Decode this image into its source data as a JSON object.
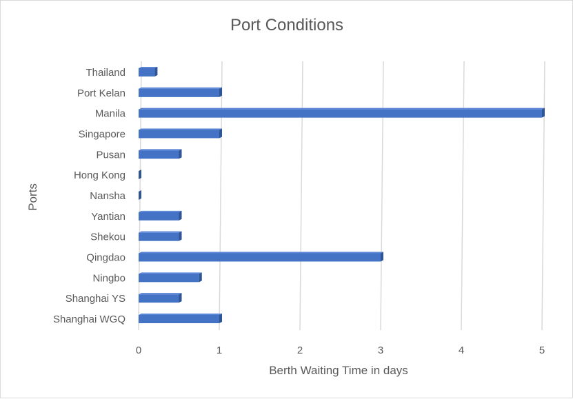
{
  "chart_data": {
    "type": "bar",
    "orientation": "horizontal",
    "title": "Port Conditions",
    "xlabel": "Berth Waiting Time in days",
    "ylabel": "Ports",
    "xlim": [
      0,
      5
    ],
    "xticks": [
      0,
      1,
      2,
      3,
      4,
      5
    ],
    "grid": true,
    "legend": "none",
    "categories": [
      "Shanghai WGQ",
      "Shanghai YS",
      "Ningbo",
      "Qingdao",
      "Shekou",
      "Yantian",
      "Nansha",
      "Hong Kong",
      "Pusan",
      "Singapore",
      "Manila",
      "Port Kelan",
      "Thailand"
    ],
    "series": [
      {
        "values": [
          1,
          0.5,
          0.75,
          3,
          0.5,
          0.5,
          0,
          0,
          0.5,
          1,
          5,
          1,
          0.2
        ]
      }
    ],
    "colors": {
      "bar_front": "#4472c4",
      "bar_top": "#5b86d6",
      "bar_side": "#2f5597",
      "grid": "#d9d9d9",
      "text": "#595959"
    }
  }
}
